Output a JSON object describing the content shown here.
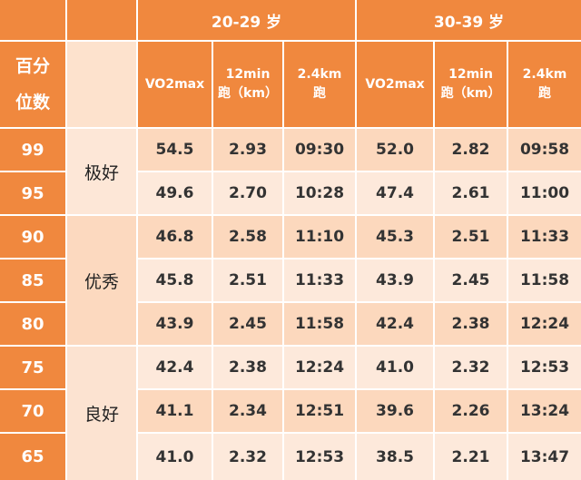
{
  "header": {
    "groups": [
      "20-29 岁",
      "30-39 岁"
    ],
    "percentile_label_line1": "百分",
    "percentile_label_line2": "位数",
    "columns": [
      {
        "line1": "VO2max",
        "line2": ""
      },
      {
        "line1": "12min",
        "line2": "跑（km）"
      },
      {
        "line1": "2.4km",
        "line2": "跑"
      },
      {
        "line1": "VO2max",
        "line2": ""
      },
      {
        "line1": "12min",
        "line2": "跑（km）"
      },
      {
        "line1": "2.4km",
        "line2": "跑"
      }
    ]
  },
  "levels": [
    "极好",
    "优秀",
    "良好"
  ],
  "rows": [
    {
      "percentile": "99",
      "values": [
        "54.5",
        "2.93",
        "09:30",
        "52.0",
        "2.82",
        "09:58"
      ]
    },
    {
      "percentile": "95",
      "values": [
        "49.6",
        "2.70",
        "10:28",
        "47.4",
        "2.61",
        "11:00"
      ]
    },
    {
      "percentile": "90",
      "values": [
        "46.8",
        "2.58",
        "11:10",
        "45.3",
        "2.51",
        "11:33"
      ]
    },
    {
      "percentile": "85",
      "values": [
        "45.8",
        "2.51",
        "11:33",
        "43.9",
        "2.45",
        "11:58"
      ]
    },
    {
      "percentile": "80",
      "values": [
        "43.9",
        "2.45",
        "11:58",
        "42.4",
        "2.38",
        "12:24"
      ]
    },
    {
      "percentile": "75",
      "values": [
        "42.4",
        "2.38",
        "12:24",
        "41.0",
        "2.32",
        "12:53"
      ]
    },
    {
      "percentile": "70",
      "values": [
        "41.1",
        "2.34",
        "12:51",
        "39.6",
        "2.26",
        "13:24"
      ]
    },
    {
      "percentile": "65",
      "values": [
        "41.0",
        "2.32",
        "12:53",
        "38.5",
        "2.21",
        "13:47"
      ]
    }
  ]
}
